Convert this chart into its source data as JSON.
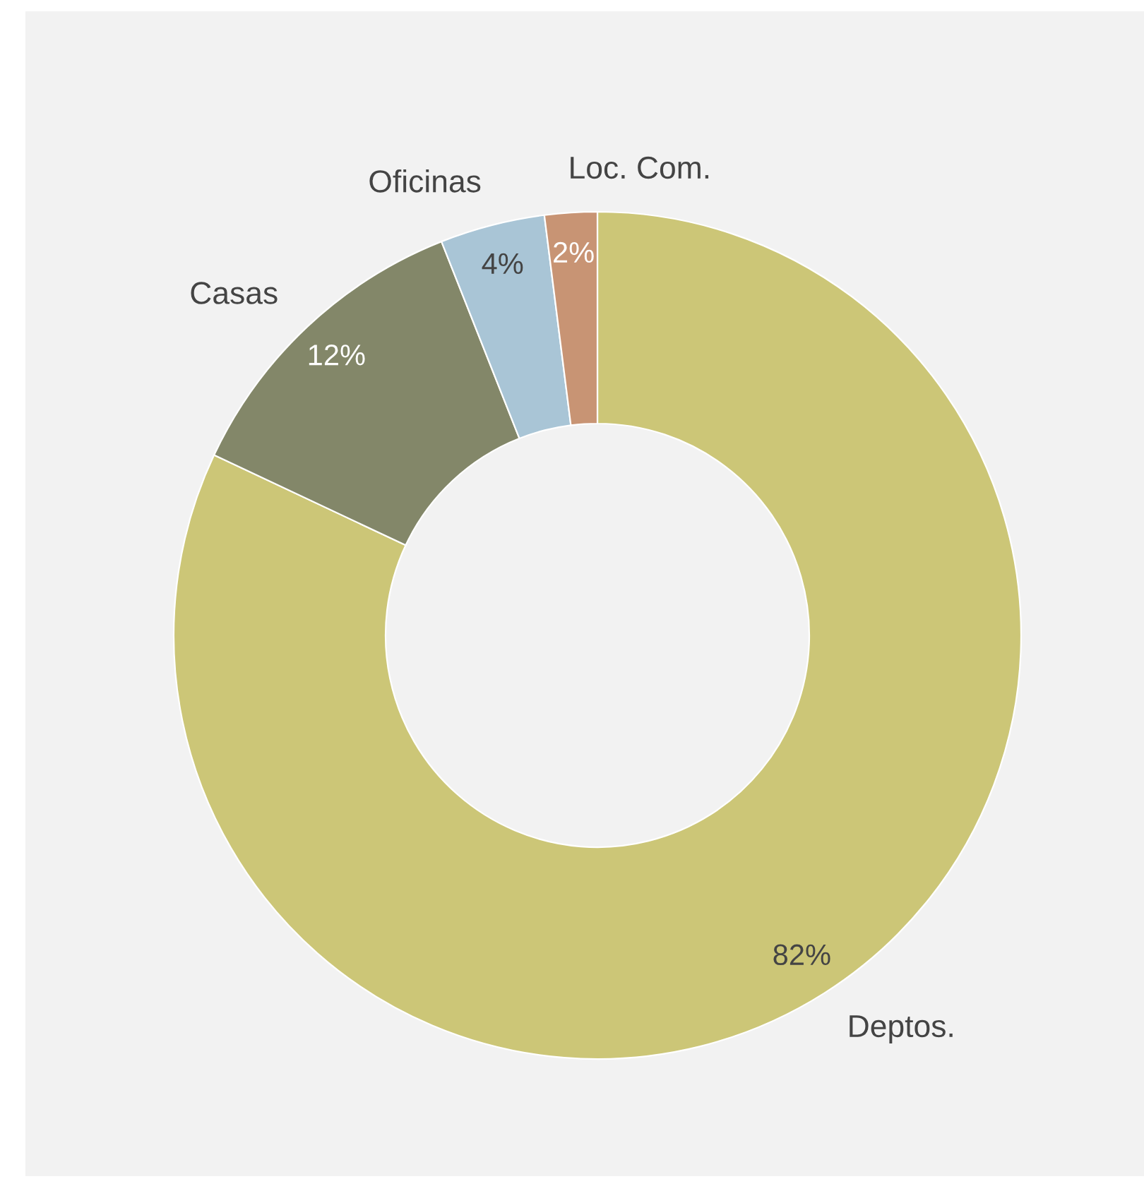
{
  "chart_data": {
    "type": "donut",
    "categories": [
      "Deptos.",
      "Casas",
      "Oficinas",
      "Loc. Com."
    ],
    "values": [
      82,
      12,
      4,
      2
    ],
    "colors": [
      "#ccc677",
      "#838769",
      "#a9c5d6",
      "#c89474"
    ],
    "value_labels": [
      "82%",
      "12%",
      "4%",
      "2%"
    ],
    "legend": false
  }
}
